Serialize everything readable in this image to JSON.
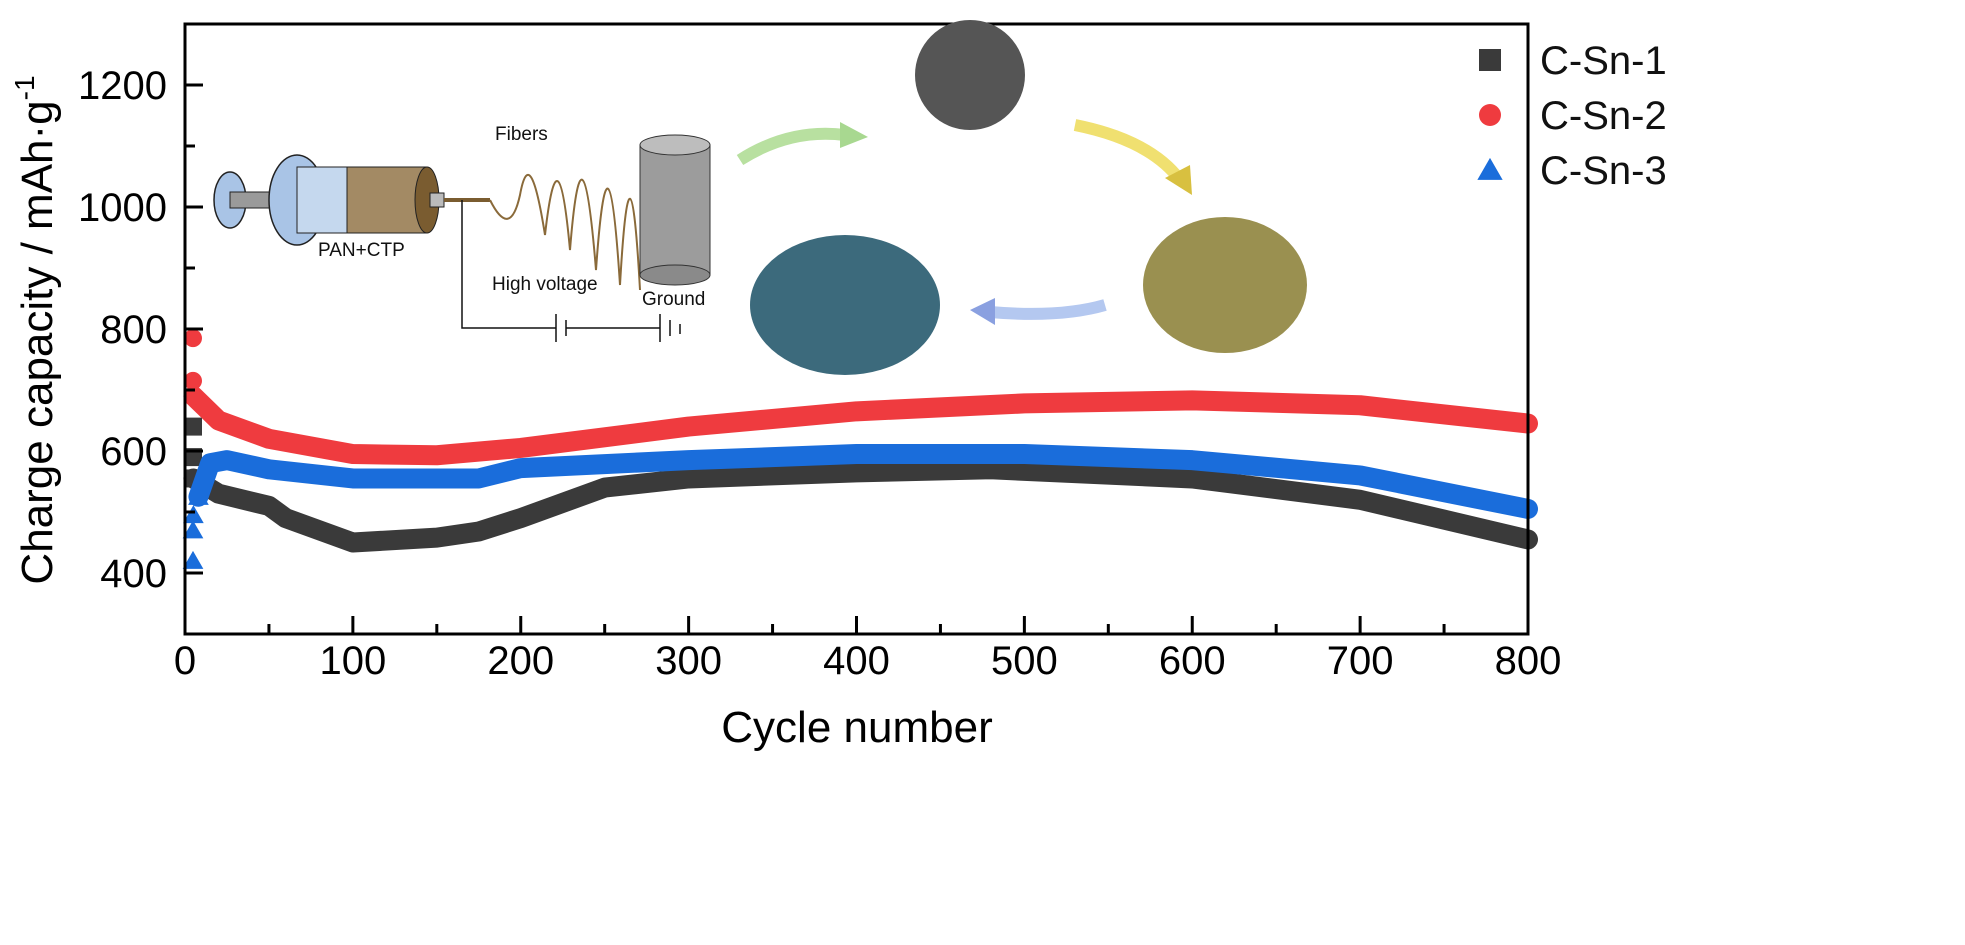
{
  "chart_data": {
    "type": "scatter",
    "title": "",
    "xlabel": "Cycle number",
    "ylabel": "Charge capacity / mAh·g",
    "ylabel_superscript": "-1",
    "xlim": [
      0,
      800
    ],
    "ylim": [
      300,
      1300
    ],
    "xticks": [
      0,
      100,
      200,
      300,
      400,
      500,
      600,
      700,
      800
    ],
    "yticks": [
      400,
      600,
      800,
      1000,
      1200
    ],
    "grid": false,
    "legend_placement": "top-right",
    "series": [
      {
        "name": "C-Sn-1",
        "marker": "square",
        "color": "#3a3a3a",
        "x": [
          1,
          3,
          5,
          20,
          50,
          60,
          100,
          150,
          175,
          200,
          250,
          300,
          400,
          480,
          600,
          700,
          800
        ],
        "y": [
          640,
          590,
          555,
          530,
          510,
          490,
          450,
          458,
          468,
          490,
          540,
          555,
          565,
          570,
          555,
          520,
          455
        ]
      },
      {
        "name": "C-Sn-2",
        "marker": "circle",
        "color": "#ef3b3f",
        "x": [
          1,
          2,
          5,
          20,
          50,
          100,
          150,
          200,
          300,
          400,
          500,
          600,
          700,
          800
        ],
        "y": [
          785,
          715,
          690,
          650,
          620,
          595,
          593,
          605,
          640,
          665,
          678,
          683,
          675,
          645
        ]
      },
      {
        "name": "C-Sn-3",
        "marker": "triangle",
        "color": "#1a6ddb",
        "x": [
          1,
          3,
          5,
          8,
          15,
          25,
          50,
          100,
          175,
          200,
          300,
          400,
          500,
          600,
          700,
          800
        ],
        "y": [
          420,
          470,
          495,
          525,
          580,
          585,
          570,
          555,
          555,
          572,
          585,
          595,
          595,
          585,
          560,
          505
        ]
      }
    ]
  },
  "inset": {
    "syringe_label": "PAN+CTP",
    "fibers_label": "Fibers",
    "voltage_label": "High voltage",
    "ground_label": "Ground"
  }
}
